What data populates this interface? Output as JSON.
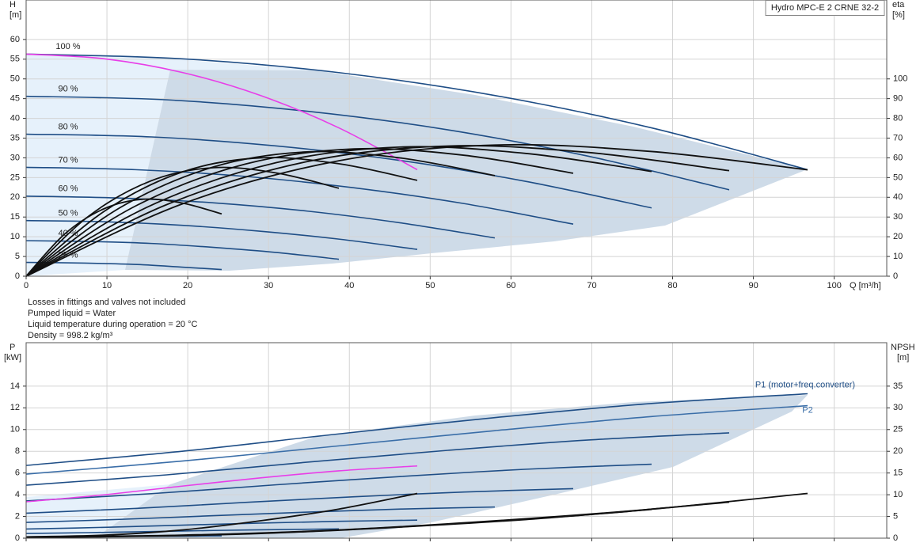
{
  "chart_data": [
    {
      "type": "line",
      "ylabel": "H",
      "yunit": "[m]",
      "y2label": "eta",
      "y2unit": "[%]",
      "xlabel": "Q [m³/h]",
      "title": "Hydro MPC-E 2 CRNE 32-2",
      "notes": [
        "Losses in fittings and valves not included",
        "Pumped liquid = Water",
        "Liquid temperature during operation = 20 °C",
        "Density = 998.2 kg/m³"
      ],
      "xlim": [
        0,
        106.5
      ],
      "xticks": [
        0,
        10,
        20,
        30,
        40,
        50,
        60,
        70,
        80,
        90,
        100
      ],
      "show_xtick_labels": true,
      "ylim": [
        0,
        70
      ],
      "yticks": [
        0,
        5,
        10,
        15,
        20,
        25,
        30,
        35,
        40,
        45,
        50,
        55,
        60
      ],
      "y2lim": [
        0,
        140
      ],
      "y2ticks": [
        0,
        10,
        20,
        30,
        40,
        50,
        60,
        70,
        80,
        90,
        100
      ],
      "grid": true,
      "series": [
        {
          "name": "100 %",
          "color": "#1f4e86",
          "x": [
            0,
            19.3,
            38.7,
            58,
            77.4,
            96.7
          ],
          "values": [
            56.3,
            55.1,
            51.6,
            45.8,
            37.6,
            27.0
          ]
        },
        {
          "name": "90 %",
          "color": "#1f4e86",
          "x": [
            0,
            17.4,
            34.8,
            52.2,
            69.6,
            87
          ],
          "values": [
            45.6,
            44.7,
            41.8,
            37.1,
            30.4,
            21.9
          ]
        },
        {
          "name": "80 %",
          "color": "#1f4e86",
          "x": [
            0,
            15.5,
            31,
            46.4,
            61.9,
            77.4
          ],
          "values": [
            36.0,
            35.3,
            33.0,
            29.3,
            24.0,
            17.3
          ]
        },
        {
          "name": "70 %",
          "color": "#1f4e86",
          "x": [
            0,
            13.5,
            27.1,
            40.6,
            54.2,
            67.7
          ],
          "values": [
            27.6,
            27.0,
            25.3,
            22.4,
            18.4,
            13.2
          ]
        },
        {
          "name": "60 %",
          "color": "#1f4e86",
          "x": [
            0,
            11.6,
            23.2,
            34.8,
            46.4,
            58
          ],
          "values": [
            20.3,
            19.8,
            18.6,
            16.5,
            13.5,
            9.7
          ]
        },
        {
          "name": "50 %",
          "color": "#1f4e86",
          "x": [
            0,
            9.7,
            19.3,
            29,
            38.7,
            48.4
          ],
          "values": [
            14.1,
            13.8,
            12.9,
            11.4,
            9.4,
            6.8
          ]
        },
        {
          "name": "40 %",
          "color": "#1f4e86",
          "x": [
            0,
            7.7,
            15.5,
            23.2,
            31,
            38.7
          ],
          "values": [
            9.0,
            8.8,
            8.3,
            7.3,
            6.0,
            4.3
          ]
        },
        {
          "name": "25 %",
          "color": "#1f4e86",
          "x": [
            0,
            4.8,
            9.7,
            14.5,
            19.3,
            24.2
          ],
          "values": [
            3.5,
            3.4,
            3.2,
            2.9,
            2.3,
            1.7
          ]
        },
        {
          "color": "#e83ee8",
          "x": [
            0,
            9.7,
            19.4,
            29,
            38.7,
            48.4
          ],
          "values": [
            56.3,
            55.1,
            51.6,
            45.8,
            37.6,
            27.0
          ]
        },
        {
          "color": "#111111",
          "axis": "y2",
          "x": [
            0,
            19.3,
            38.7,
            58,
            77.4,
            96.7
          ],
          "values": [
            0,
            36.6,
            58.5,
            66.5,
            63.2,
            53.9
          ]
        },
        {
          "color": "#111111",
          "axis": "y2",
          "x": [
            0,
            17.4,
            34.8,
            52.2,
            69.6,
            87
          ],
          "values": [
            0,
            36.3,
            58.1,
            66,
            62.7,
            53.5
          ]
        },
        {
          "color": "#111111",
          "axis": "y2",
          "x": [
            0,
            15.5,
            31,
            46.4,
            61.9,
            77.4
          ],
          "values": [
            0,
            36.0,
            57.6,
            65.5,
            62.2,
            53.1
          ]
        },
        {
          "color": "#111111",
          "axis": "y2",
          "x": [
            0,
            13.5,
            27.1,
            40.6,
            54.2,
            67.7
          ],
          "values": [
            0,
            35.5,
            56.8,
            64.5,
            61.3,
            52.2
          ]
        },
        {
          "color": "#111111",
          "axis": "y2",
          "x": [
            0,
            11.6,
            23.2,
            34.8,
            46.4,
            58
          ],
          "values": [
            0,
            34.7,
            55.4,
            63,
            59.9,
            51.0
          ]
        },
        {
          "color": "#111111",
          "axis": "y2",
          "x": [
            0,
            9.7,
            19.3,
            29,
            38.7,
            48.4
          ],
          "values": [
            0,
            33.0,
            52.8,
            60,
            57,
            48.6
          ]
        },
        {
          "color": "#111111",
          "axis": "y2",
          "x": [
            0,
            7.7,
            15.5,
            23.2,
            31,
            38.7
          ],
          "values": [
            0,
            30.3,
            48.4,
            55,
            52.3,
            44.6
          ]
        },
        {
          "color": "#111111",
          "axis": "y2",
          "x": [
            0,
            4.8,
            9.7,
            14.5,
            19.3,
            24.2
          ],
          "values": [
            0,
            21.5,
            34.3,
            39,
            37.1,
            31.6
          ]
        }
      ]
    },
    {
      "type": "line",
      "ylabel": "P",
      "yunit": "[kW]",
      "y2label": "NPSH",
      "y2unit": "[m]",
      "xlim": [
        0,
        106.5
      ],
      "xticks": [
        0,
        10,
        20,
        30,
        40,
        50,
        60,
        70,
        80,
        90,
        100
      ],
      "show_xtick_labels": false,
      "ylim": [
        0,
        18
      ],
      "yticks": [
        0,
        2,
        4,
        6,
        8,
        10,
        12,
        14
      ],
      "y2lim": [
        0,
        45
      ],
      "y2ticks": [
        0,
        5,
        10,
        15,
        20,
        25,
        30,
        35
      ],
      "grid": true,
      "series": [
        {
          "name": "P1 (motor+freq.converter)",
          "color": "#1f4e86",
          "x": [
            0,
            19.3,
            38.7,
            58,
            77.4,
            96.7
          ],
          "values": [
            6.7,
            8.0,
            9.6,
            11.1,
            12.4,
            13.3
          ]
        },
        {
          "name": "P2",
          "color": "#3a6ea8",
          "x": [
            0,
            19.3,
            38.7,
            58,
            77.4,
            96.7
          ],
          "values": [
            5.9,
            7.1,
            8.5,
            9.9,
            11.2,
            12.2
          ]
        },
        {
          "color": "#1f4e86",
          "x": [
            0,
            17.4,
            34.8,
            52.2,
            69.6,
            87
          ],
          "values": [
            4.88,
            5.83,
            7.0,
            8.09,
            9.04,
            9.7
          ]
        },
        {
          "color": "#1f4e86",
          "x": [
            0,
            15.5,
            31,
            46.4,
            61.9,
            77.4
          ],
          "values": [
            3.43,
            4.1,
            4.92,
            5.68,
            6.35,
            6.81
          ]
        },
        {
          "color": "#1f4e86",
          "x": [
            0,
            13.5,
            27.1,
            40.6,
            54.2,
            67.7
          ],
          "values": [
            2.3,
            2.74,
            3.29,
            3.81,
            4.25,
            4.56
          ]
        },
        {
          "color": "#1f4e86",
          "x": [
            0,
            11.6,
            23.2,
            34.8,
            46.4,
            58
          ],
          "values": [
            1.45,
            1.73,
            2.07,
            2.4,
            2.68,
            2.87
          ]
        },
        {
          "color": "#1f4e86",
          "x": [
            0,
            9.7,
            19.3,
            29,
            38.7,
            48.4
          ],
          "values": [
            0.84,
            1.0,
            1.2,
            1.39,
            1.55,
            1.66
          ]
        },
        {
          "color": "#1f4e86",
          "x": [
            0,
            7.7,
            15.5,
            23.2,
            31,
            38.7
          ],
          "values": [
            0.43,
            0.51,
            0.61,
            0.71,
            0.79,
            0.85
          ]
        },
        {
          "color": "#1f4e86",
          "x": [
            0,
            4.8,
            9.7,
            14.5,
            19.3,
            24.2
          ],
          "values": [
            0.1,
            0.13,
            0.15,
            0.17,
            0.19,
            0.21
          ]
        },
        {
          "color": "#e83ee8",
          "x": [
            0,
            9.7,
            19.4,
            29,
            38.7,
            48.4
          ],
          "values": [
            3.35,
            4.0,
            4.8,
            5.55,
            6.2,
            6.65
          ]
        },
        {
          "color": "#111111",
          "axis": "y2",
          "x": [
            0,
            19.3,
            38.7,
            58,
            77.4,
            96.7
          ],
          "values": [
            0.3,
            0.7,
            1.9,
            4.0,
            6.7,
            10.3
          ]
        },
        {
          "color": "#111111",
          "axis": "y2",
          "x": [
            0,
            17.4,
            34.8,
            52.2,
            69.6,
            87
          ],
          "values": [
            0.24,
            0.57,
            1.54,
            3.24,
            5.43,
            8.3
          ]
        },
        {
          "color": "#111111",
          "axis": "y2",
          "x": [
            0,
            15.5,
            31,
            46.4,
            61.9,
            77.4
          ],
          "values": [
            0.19,
            0.45,
            1.22,
            2.56,
            4.29,
            6.6
          ]
        },
        {
          "color": "#111111",
          "axis": "y2",
          "x": [
            0,
            9.7,
            19.4,
            29,
            38.7,
            48.4
          ],
          "values": [
            0.3,
            0.7,
            1.9,
            4.0,
            6.7,
            10.3
          ]
        }
      ]
    }
  ]
}
